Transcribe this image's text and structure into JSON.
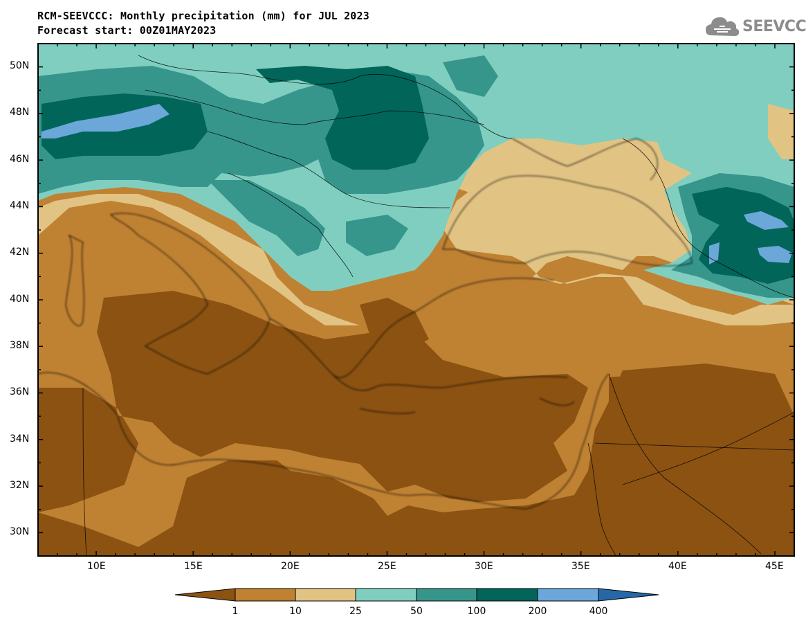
{
  "title_line1": "RCM-SEEVCCC: Monthly precipitation (mm) for JUL 2023",
  "title_line2": "Forecast start: 00Z01MAY2023",
  "logo": {
    "text": "SEEVCCC",
    "icon": "cloud-icon"
  },
  "map": {
    "lon_range": [
      7,
      46
    ],
    "lat_range": [
      29,
      51
    ],
    "lat_ticks": [
      "50N",
      "48N",
      "46N",
      "44N",
      "42N",
      "40N",
      "38N",
      "36N",
      "34N",
      "32N",
      "30N"
    ],
    "lon_ticks": [
      "10E",
      "15E",
      "20E",
      "25E",
      "30E",
      "35E",
      "40E",
      "45E"
    ]
  },
  "colorbar": {
    "colors": [
      "#8b5212",
      "#bf8132",
      "#e1c383",
      "#80cec0",
      "#36968c",
      "#016559",
      "#6ba7d9",
      "#2667a8"
    ],
    "labels": [
      "1",
      "10",
      "25",
      "50",
      "100",
      "200",
      "400"
    ]
  }
}
